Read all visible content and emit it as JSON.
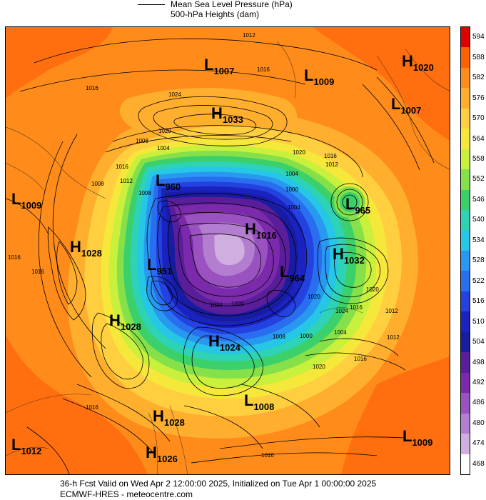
{
  "legend": {
    "pressure_label": "Mean Sea Level Pressure (hPa)",
    "heights_label": "500-hPa Heights (dam)"
  },
  "colorbar": {
    "ticks": [
      "594",
      "588",
      "582",
      "576",
      "570",
      "564",
      "558",
      "552",
      "546",
      "540",
      "534",
      "528",
      "522",
      "516",
      "510",
      "504",
      "498",
      "492",
      "486",
      "480",
      "474",
      "468"
    ],
    "colors": [
      "#e00000",
      "#ff6000",
      "#ff8c1a",
      "#ffae2e",
      "#ffcf3f",
      "#f5e83a",
      "#c8f03c",
      "#86e04a",
      "#3cd06a",
      "#2ed2b4",
      "#26c6e6",
      "#2898f0",
      "#2a6ef0",
      "#2442e0",
      "#1a22c0",
      "#181ca0",
      "#5a1e9a",
      "#7a2aaa",
      "#9a52c0",
      "#b47ed0",
      "#cfaee0",
      "#ffffff"
    ]
  },
  "centers": [
    {
      "letter": "L",
      "value": "1007"
    },
    {
      "letter": "L",
      "value": "1009"
    },
    {
      "letter": "H",
      "value": "1020"
    },
    {
      "letter": "H",
      "value": "1033"
    },
    {
      "letter": "L",
      "value": "1007"
    },
    {
      "letter": "L",
      "value": "1009"
    },
    {
      "letter": "L",
      "value": "960"
    },
    {
      "letter": "L",
      "value": "965"
    },
    {
      "letter": "H",
      "value": "1016"
    },
    {
      "letter": "H",
      "value": "1028"
    },
    {
      "letter": "H",
      "value": "1032"
    },
    {
      "letter": "L",
      "value": "951"
    },
    {
      "letter": "L",
      "value": "964"
    },
    {
      "letter": "H",
      "value": "1028"
    },
    {
      "letter": "H",
      "value": "1024"
    },
    {
      "letter": "L",
      "value": "1008"
    },
    {
      "letter": "H",
      "value": "1028"
    },
    {
      "letter": "L",
      "value": "1012"
    },
    {
      "letter": "H",
      "value": "1026"
    },
    {
      "letter": "L",
      "value": "1009"
    }
  ],
  "isobar_labels": [
    "1012",
    "1016",
    "1016",
    "1024",
    "1020",
    "1008",
    "1004",
    "1020",
    "1016",
    "1008",
    "1004",
    "1012",
    "1004",
    "1000",
    "1016",
    "1016",
    "1020",
    "1024",
    "1012",
    "1016",
    "1020",
    "1012",
    "1008",
    "1000",
    "1004",
    "1016",
    "1020",
    "1016",
    "1016",
    "1024",
    "1020",
    "1008",
    "1012",
    "1016"
  ],
  "footer": {
    "valid_line": "36-h Fcst Valid on Wed Apr  2 12:00:00 2025, Initialized on Tue Apr  1 00:00:00 2025",
    "source_line": "ECMWF-HRES  - meteocentre.com"
  }
}
